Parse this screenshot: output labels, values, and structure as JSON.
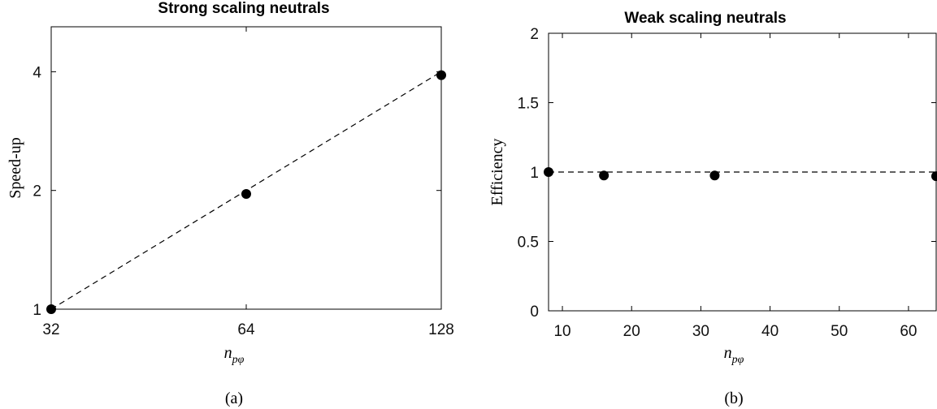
{
  "chart_data": [
    {
      "type": "scatter",
      "panel_caption": "(a)",
      "title": "Strong scaling neutrals",
      "xlabel": "n",
      "xlabel_subscript": "pφ",
      "ylabel": "Speed-up",
      "xscale": "log2",
      "yscale": "log2",
      "xlim": [
        32,
        128
      ],
      "ylim": [
        1,
        5.2
      ],
      "xticks": [
        32,
        64,
        128
      ],
      "xtick_labels": [
        "32",
        "64",
        "128"
      ],
      "yticks": [
        1,
        2,
        4
      ],
      "ytick_labels": [
        "1",
        "2",
        "4"
      ],
      "series": [
        {
          "style": "markers",
          "color": "#000000",
          "x": [
            32,
            64,
            128
          ],
          "y": [
            1,
            1.96,
            3.92
          ]
        },
        {
          "style": "dashed-line",
          "color": "#000000",
          "x": [
            32,
            128
          ],
          "y": [
            1,
            4
          ]
        }
      ],
      "grid": false,
      "legend": "none"
    },
    {
      "type": "scatter",
      "panel_caption": "(b)",
      "title": "Weak scaling neutrals",
      "xlabel": "n",
      "xlabel_subscript": "pφ",
      "ylabel": "Efficiency",
      "xscale": "linear",
      "yscale": "linear",
      "xlim": [
        8,
        64
      ],
      "ylim": [
        0,
        2
      ],
      "xticks": [
        10,
        20,
        30,
        40,
        50,
        60
      ],
      "xtick_labels": [
        "10",
        "20",
        "30",
        "40",
        "50",
        "60"
      ],
      "yticks": [
        0,
        0.5,
        1,
        1.5,
        2
      ],
      "ytick_labels": [
        "0",
        "0.5",
        "1",
        "1.5",
        "2"
      ],
      "series": [
        {
          "style": "markers",
          "color": "#000000",
          "x": [
            8,
            16,
            32,
            64
          ],
          "y": [
            1.0,
            0.975,
            0.975,
            0.97
          ]
        },
        {
          "style": "dashed-line",
          "color": "#000000",
          "x": [
            8,
            64
          ],
          "y": [
            1,
            1
          ]
        }
      ],
      "grid": false,
      "legend": "none"
    }
  ]
}
